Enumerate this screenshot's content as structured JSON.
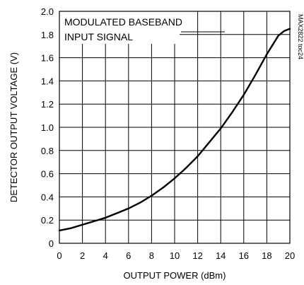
{
  "chart_data": {
    "type": "line",
    "title": "",
    "xlabel": "OUTPUT POWER (dBm)",
    "ylabel": "DETECTOR OUTPUT VOLTAGE (V)",
    "xlim": [
      0,
      20
    ],
    "ylim": [
      0,
      2.0
    ],
    "x_ticks": [
      "0",
      "2",
      "4",
      "6",
      "8",
      "10",
      "12",
      "14",
      "16",
      "18",
      "20"
    ],
    "y_ticks": [
      "0",
      "0.2",
      "0.4",
      "0.6",
      "0.8",
      "1.0",
      "1.2",
      "1.4",
      "1.6",
      "1.8",
      "2.0"
    ],
    "grid": true,
    "legend": "none",
    "annotation": [
      "MODULATED BASEBAND",
      "INPUT SIGNAL"
    ],
    "figure_code": "MAX2822 toc24",
    "series": [
      {
        "x": [
          0,
          1,
          2,
          3,
          4,
          5,
          6,
          7,
          8,
          9,
          10,
          11,
          12,
          13,
          14,
          15,
          16,
          17,
          18,
          18.5,
          19,
          19.5,
          20
        ],
        "y": [
          0.11,
          0.13,
          0.16,
          0.19,
          0.22,
          0.26,
          0.3,
          0.35,
          0.41,
          0.48,
          0.56,
          0.65,
          0.75,
          0.87,
          0.99,
          1.13,
          1.28,
          1.45,
          1.63,
          1.71,
          1.79,
          1.83,
          1.85
        ]
      }
    ]
  }
}
